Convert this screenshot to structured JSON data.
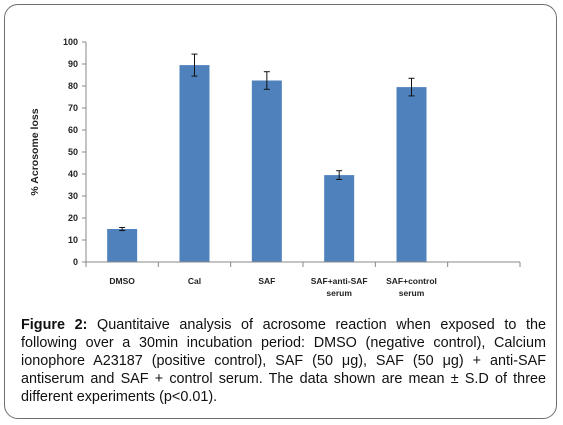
{
  "chart_data": {
    "type": "bar",
    "categories": [
      [
        "DMSO"
      ],
      [
        "Cal"
      ],
      [
        "SAF"
      ],
      [
        "SAF+anti-SAF",
        "serum"
      ],
      [
        "SAF+control",
        "serum"
      ]
    ],
    "values": [
      15,
      89.5,
      82.5,
      39.5,
      79.5
    ],
    "errors": [
      0.7,
      5,
      4,
      2,
      4
    ],
    "ylabel": "% Acrosome loss",
    "ylim": [
      0,
      100
    ],
    "yticks": [
      0,
      10,
      20,
      30,
      40,
      50,
      60,
      70,
      80,
      90,
      100
    ],
    "bar_color": "#4f81bd",
    "grid": false
  },
  "caption": {
    "label": "Figure 2:",
    "text": " Quantitaive analysis of acrosome reaction when exposed to the following over a 30min incubation period: DMSO (negative control), Calcium ionophore A23187 (positive control), SAF (50 μg), SAF (50 μg) + anti-SAF antiserum and SAF + control serum. The data shown are mean ± S.D of three different experiments (p<0.01)."
  }
}
